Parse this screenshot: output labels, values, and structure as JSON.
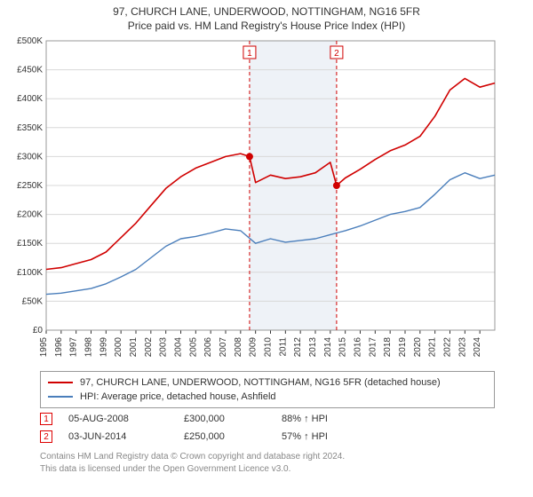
{
  "title": {
    "line1": "97, CHURCH LANE, UNDERWOOD, NOTTINGHAM, NG16 5FR",
    "line2": "Price paid vs. HM Land Registry's House Price Index (HPI)"
  },
  "chart": {
    "type": "line",
    "background_color": "#ffffff",
    "plot_border_color": "#999999",
    "grid_color": "#d8d8d8",
    "shaded_band": {
      "x_from": 2008.6,
      "x_to": 2014.42,
      "fill": "#eef2f7"
    },
    "x": {
      "min": 1995,
      "max": 2025,
      "ticks": [
        1995,
        1996,
        1997,
        1998,
        1999,
        2000,
        2001,
        2002,
        2003,
        2004,
        2005,
        2006,
        2007,
        2008,
        2009,
        2010,
        2011,
        2012,
        2013,
        2014,
        2015,
        2016,
        2017,
        2018,
        2019,
        2020,
        2021,
        2022,
        2023,
        2024
      ],
      "tick_label_rotation": -90,
      "tick_fontsize": 10
    },
    "y": {
      "min": 0,
      "max": 500000,
      "ticks": [
        0,
        50000,
        100000,
        150000,
        200000,
        250000,
        300000,
        350000,
        400000,
        450000,
        500000
      ],
      "tick_labels": [
        "£0",
        "£50K",
        "£100K",
        "£150K",
        "£200K",
        "£250K",
        "£300K",
        "£350K",
        "£400K",
        "£450K",
        "£500K"
      ],
      "tick_fontsize": 10
    },
    "series": [
      {
        "id": "property",
        "label": "97, CHURCH LANE, UNDERWOOD, NOTTINGHAM, NG16 5FR (detached house)",
        "color": "#d00000",
        "line_width": 1.6,
        "x": [
          1995,
          1996,
          1997,
          1998,
          1999,
          2000,
          2001,
          2002,
          2003,
          2004,
          2005,
          2006,
          2007,
          2008,
          2008.6,
          2009,
          2010,
          2011,
          2012,
          2013,
          2014,
          2014.42,
          2015,
          2016,
          2017,
          2018,
          2019,
          2020,
          2021,
          2022,
          2023,
          2024,
          2025
        ],
        "y": [
          105000,
          108000,
          115000,
          122000,
          135000,
          160000,
          185000,
          215000,
          245000,
          265000,
          280000,
          290000,
          300000,
          305000,
          300000,
          255000,
          268000,
          262000,
          265000,
          272000,
          290000,
          250000,
          263000,
          278000,
          295000,
          310000,
          320000,
          335000,
          370000,
          415000,
          435000,
          420000,
          427000
        ]
      },
      {
        "id": "hpi",
        "label": "HPI: Average price, detached house, Ashfield",
        "color": "#4a7ebb",
        "line_width": 1.4,
        "x": [
          1995,
          1996,
          1997,
          1998,
          1999,
          2000,
          2001,
          2002,
          2003,
          2004,
          2005,
          2006,
          2007,
          2008,
          2009,
          2010,
          2011,
          2012,
          2013,
          2014,
          2015,
          2016,
          2017,
          2018,
          2019,
          2020,
          2021,
          2022,
          2023,
          2024,
          2025
        ],
        "y": [
          62000,
          64000,
          68000,
          72000,
          80000,
          92000,
          105000,
          125000,
          145000,
          158000,
          162000,
          168000,
          175000,
          172000,
          150000,
          158000,
          152000,
          155000,
          158000,
          165000,
          172000,
          180000,
          190000,
          200000,
          205000,
          212000,
          235000,
          260000,
          272000,
          262000,
          268000
        ]
      }
    ],
    "markers": [
      {
        "n": "1",
        "x": 2008.6,
        "y": 300000,
        "color": "#d00000",
        "dash": "4,3"
      },
      {
        "n": "2",
        "x": 2014.42,
        "y": 250000,
        "color": "#d00000",
        "dash": "4,3"
      }
    ]
  },
  "legend": {
    "border_color": "#999999",
    "items": [
      {
        "color": "#d00000",
        "label": "97, CHURCH LANE, UNDERWOOD, NOTTINGHAM, NG16 5FR (detached house)"
      },
      {
        "color": "#4a7ebb",
        "label": "HPI: Average price, detached house, Ashfield"
      }
    ]
  },
  "sales": [
    {
      "n": "1",
      "date": "05-AUG-2008",
      "price": "£300,000",
      "pct": "88% ↑ HPI"
    },
    {
      "n": "2",
      "date": "03-JUN-2014",
      "price": "£250,000",
      "pct": "57% ↑ HPI"
    }
  ],
  "footer": {
    "line1": "Contains HM Land Registry data © Crown copyright and database right 2024.",
    "line2": "This data is licensed under the Open Government Licence v3.0."
  }
}
